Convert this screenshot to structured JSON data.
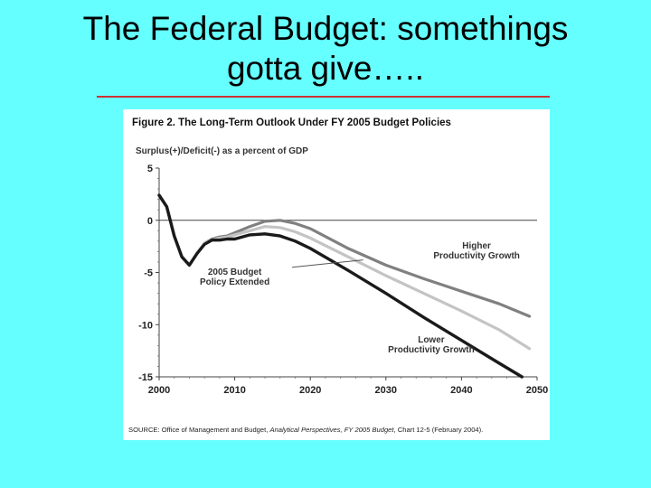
{
  "slide": {
    "title_line1": "The Federal Budget: somethings",
    "title_line2": "gotta give….."
  },
  "colors": {
    "background": "#66ffff",
    "title_rule": "#cc3333"
  },
  "chart_data": {
    "type": "line",
    "title": "Figure 2. The Long-Term Outlook Under FY 2005 Budget Policies",
    "ylabel": "Surplus(+)/Deficit(-) as a percent of GDP",
    "xlabel": "",
    "xlim": [
      2000,
      2050
    ],
    "ylim": [
      -15,
      5
    ],
    "x_ticks": [
      2000,
      2010,
      2020,
      2030,
      2040,
      2050
    ],
    "y_ticks": [
      5,
      0,
      -5,
      -10,
      -15
    ],
    "grid": false,
    "zero_line": true,
    "series": [
      {
        "name": "Higher Productivity Growth",
        "color": "#808080",
        "x": [
          2000,
          2001,
          2002,
          2003,
          2004,
          2005,
          2006,
          2007,
          2008,
          2009,
          2010,
          2012,
          2014,
          2016,
          2018,
          2020,
          2025,
          2030,
          2035,
          2040,
          2045,
          2049
        ],
        "y": [
          2.4,
          1.3,
          -1.5,
          -3.5,
          -4.3,
          -3.2,
          -2.2,
          -1.8,
          -1.6,
          -1.5,
          -1.2,
          -0.6,
          -0.1,
          0,
          -0.3,
          -0.8,
          -2.7,
          -4.3,
          -5.6,
          -6.8,
          -8.0,
          -9.2
        ]
      },
      {
        "name": "",
        "color": "#c4c4c4",
        "x": [
          2000,
          2001,
          2002,
          2003,
          2004,
          2005,
          2006,
          2007,
          2008,
          2009,
          2010,
          2012,
          2014,
          2016,
          2018,
          2020,
          2025,
          2030,
          2035,
          2040,
          2045,
          2049
        ],
        "y": [
          2.4,
          1.3,
          -1.5,
          -3.5,
          -4.3,
          -3.2,
          -2.2,
          -1.9,
          -1.7,
          -1.6,
          -1.4,
          -1.0,
          -0.6,
          -0.7,
          -1.1,
          -1.7,
          -3.5,
          -5.3,
          -7.0,
          -8.7,
          -10.5,
          -12.3
        ]
      },
      {
        "name": "2005 Budget Policy Extended",
        "color": "#1a1a1a",
        "x": [
          2000,
          2001,
          2002,
          2003,
          2004,
          2005,
          2006,
          2007,
          2008,
          2009,
          2010,
          2012,
          2014,
          2016,
          2018,
          2020,
          2025,
          2030,
          2035,
          2040,
          2045,
          2048
        ],
        "y": [
          2.4,
          1.3,
          -1.5,
          -3.5,
          -4.3,
          -3.2,
          -2.3,
          -1.9,
          -1.9,
          -1.8,
          -1.8,
          -1.4,
          -1.3,
          -1.5,
          -2.0,
          -2.7,
          -4.8,
          -7.0,
          -9.3,
          -11.5,
          -13.7,
          -15.0
        ]
      }
    ],
    "annotations": [
      {
        "lines": [
          "Higher",
          "Productivity Growth"
        ],
        "x": 2042,
        "y": -2.7,
        "anchor": "middle"
      },
      {
        "lines": [
          "2005 Budget",
          "Policy Extended"
        ],
        "x": 2010,
        "y": -5.2,
        "anchor": "middle"
      },
      {
        "lines": [
          "Lower",
          "Productivity Growth"
        ],
        "x": 2036,
        "y": -11.7,
        "anchor": "middle"
      }
    ],
    "source_prefix": "SOURCE: Office of Management and Budget, ",
    "source_italic": "Analytical Perspectives, FY 2005 Budget",
    "source_suffix": ", Chart 12-5 (February 2004)."
  }
}
